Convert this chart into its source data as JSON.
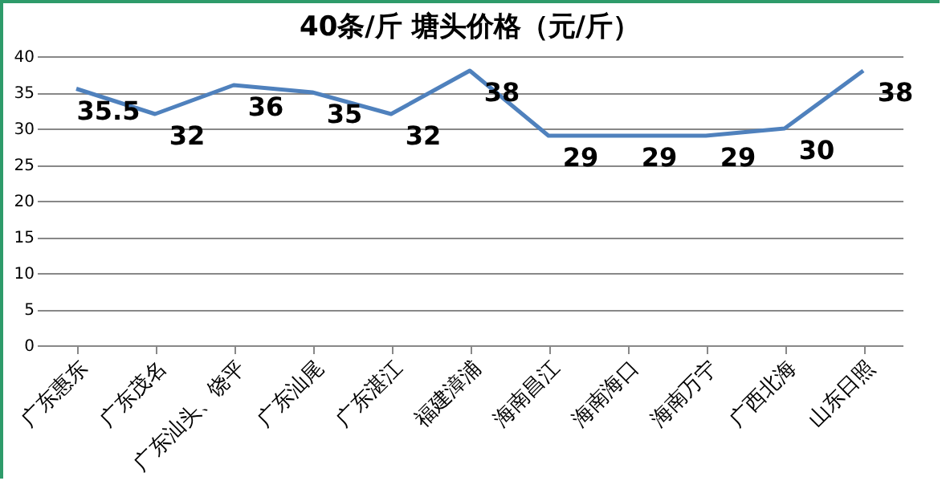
{
  "chart_data": {
    "type": "line",
    "title": "40条/斤  塘头价格（元/斤）",
    "categories": [
      "广东惠东",
      "广东茂名",
      "广东汕头、饶平",
      "广东汕尾",
      "广东湛江",
      "福建漳浦",
      "海南昌江",
      "海南海口",
      "海南万宁",
      "广西北海",
      "山东日照"
    ],
    "series": [
      {
        "color": "#4f81bd",
        "values": [
          35.5,
          32,
          36,
          35,
          32,
          38,
          29,
          29,
          29,
          30,
          38
        ]
      }
    ],
    "ylim": [
      0,
      40
    ],
    "yticks": [
      0,
      5,
      10,
      15,
      20,
      25,
      30,
      35,
      40
    ],
    "grid": "y",
    "data_labels": true,
    "marker": "none"
  }
}
